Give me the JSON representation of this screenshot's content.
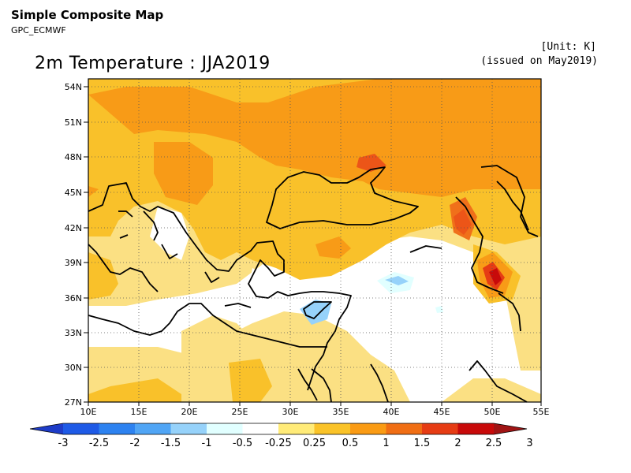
{
  "header": {
    "title": "Simple Composite Map",
    "subtitle": "GPC_ECMWF",
    "unit": "[Unit: K]",
    "issued": "(issued on May2019)"
  },
  "map": {
    "title": "2m Temperature : JJA2019",
    "lon_range": [
      10,
      55
    ],
    "lat_range": [
      27,
      55
    ],
    "lon_ticks": [
      "10E",
      "15E",
      "20E",
      "25E",
      "30E",
      "35E",
      "40E",
      "45E",
      "50E",
      "55E"
    ],
    "lat_ticks": [
      "54N",
      "51N",
      "48N",
      "45N",
      "42N",
      "39N",
      "36N",
      "33N",
      "30N",
      "27N"
    ],
    "grid": "dotted"
  },
  "colorbar": {
    "labels": [
      "-3",
      "-2.5",
      "-2",
      "-1.5",
      "-1",
      "-0.5",
      "-0.25",
      "0.25",
      "0.5",
      "1",
      "1.5",
      "2",
      "2.5",
      "3"
    ],
    "colors": [
      "#1e3cc8",
      "#1e5ae6",
      "#2d82f0",
      "#50a5f5",
      "#96d2fa",
      "#e1ffff",
      "#ffffff",
      "#ffeb78",
      "#fac328",
      "#fa9b14",
      "#f06e14",
      "#e63c14",
      "#c80a0a",
      "#a01414"
    ]
  }
}
